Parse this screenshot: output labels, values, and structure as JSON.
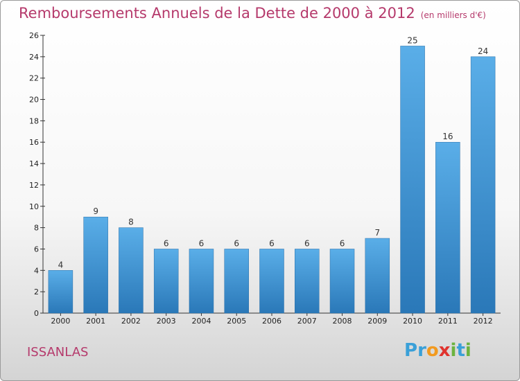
{
  "title": "Remboursements Annuels de la Dette de 2000 à 2012",
  "unit": "(en milliers d'€)",
  "commune": "ISSANLAS",
  "logo": {
    "letters": [
      "P",
      "r",
      "o",
      "x",
      "i",
      "t",
      "i"
    ],
    "colors": [
      "#3aa0d8",
      "#3aa0d8",
      "#f29a1f",
      "#e0332e",
      "#6cb33f",
      "#3aa0d8",
      "#6cb33f"
    ]
  },
  "colors": {
    "bar": "#3b93d6",
    "axis": "#333333"
  },
  "chart_data": {
    "type": "bar",
    "categories": [
      "2000",
      "2001",
      "2002",
      "2003",
      "2004",
      "2005",
      "2006",
      "2007",
      "2008",
      "2009",
      "2010",
      "2011",
      "2012"
    ],
    "values": [
      4,
      9,
      8,
      6,
      6,
      6,
      6,
      6,
      6,
      7,
      25,
      16,
      24
    ],
    "title": "Remboursements Annuels de la Dette de 2000 à 2012",
    "xlabel": "",
    "ylabel": "",
    "ylim": [
      0,
      26
    ],
    "yticks": [
      0,
      2,
      4,
      6,
      8,
      10,
      12,
      14,
      16,
      18,
      20,
      22,
      24,
      26
    ],
    "grid": false,
    "legend": "none"
  }
}
